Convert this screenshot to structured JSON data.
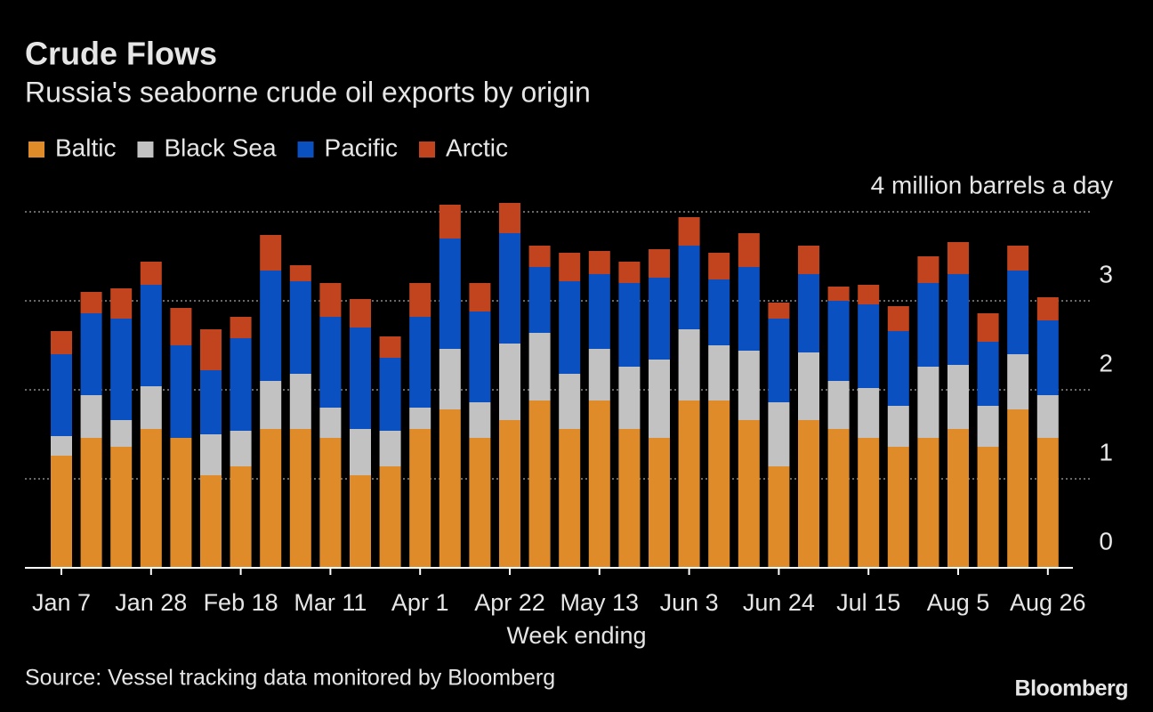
{
  "chart_data": {
    "type": "stacked_bar",
    "title": "Crude Flows",
    "subtitle": "Russia's seaborne crude oil exports by origin",
    "x_label": "Week ending",
    "source": "Source: Vessel tracking data monitored by Bloomberg",
    "credit": "Bloomberg",
    "categories": [
      "Jan 7",
      null,
      null,
      "Jan 28",
      null,
      null,
      "Feb 18",
      null,
      null,
      "Mar 11",
      null,
      null,
      "Apr 1",
      null,
      null,
      "Apr 22",
      null,
      null,
      "May 13",
      null,
      null,
      "Jun 3",
      null,
      null,
      "Jun 24",
      null,
      null,
      "Jul 15",
      null,
      null,
      "Aug 5",
      null,
      null,
      "Aug 26"
    ],
    "series": [
      {
        "name": "Baltic",
        "color": "#e08b2a",
        "values": [
          1.26,
          1.46,
          1.36,
          1.56,
          1.46,
          1.04,
          1.14,
          1.56,
          1.56,
          1.46,
          1.04,
          1.14,
          1.56,
          1.78,
          1.46,
          1.66,
          1.88,
          1.56,
          1.88,
          1.56,
          1.46,
          1.88,
          1.88,
          1.66,
          1.14,
          1.66,
          1.56,
          1.46,
          1.36,
          1.46,
          1.56,
          1.36,
          1.78,
          1.46
        ]
      },
      {
        "name": "Black Sea",
        "color": "#c2c2c2",
        "values": [
          0.22,
          0.48,
          0.3,
          0.48,
          0,
          0.46,
          0.4,
          0.54,
          0.62,
          0.34,
          0.52,
          0.4,
          0.24,
          0.68,
          0.4,
          0.86,
          0.76,
          0.62,
          0.58,
          0.7,
          0.88,
          0.8,
          0.62,
          0.78,
          0.72,
          0.76,
          0.54,
          0.56,
          0.46,
          0.8,
          0.72,
          0.46,
          0.62,
          0.48
        ]
      },
      {
        "name": "Pacific",
        "color": "#0a50c0",
        "values": [
          0.92,
          0.92,
          1.14,
          1.14,
          1.04,
          0.72,
          1.04,
          1.24,
          1.04,
          1.02,
          1.14,
          0.82,
          1.02,
          1.24,
          1.02,
          1.24,
          0.74,
          1.04,
          0.84,
          0.94,
          0.92,
          0.94,
          0.74,
          0.94,
          0.94,
          0.88,
          0.9,
          0.94,
          0.84,
          0.94,
          1.02,
          0.72,
          0.94,
          0.84
        ]
      },
      {
        "name": "Arctic",
        "color": "#c2441f",
        "values": [
          0.26,
          0.24,
          0.34,
          0.26,
          0.42,
          0.46,
          0.24,
          0.4,
          0.18,
          0.38,
          0.32,
          0.24,
          0.38,
          0.38,
          0.32,
          0.34,
          0.24,
          0.32,
          0.26,
          0.24,
          0.32,
          0.32,
          0.3,
          0.38,
          0.18,
          0.32,
          0.16,
          0.22,
          0.28,
          0.3,
          0.36,
          0.32,
          0.28,
          0.26
        ]
      }
    ],
    "ylim": [
      0,
      4
    ],
    "yticks": [
      0,
      1,
      2,
      3,
      {
        "value": 4,
        "label": "4 million barrels a day"
      }
    ],
    "grid": true,
    "legend": "top-left"
  }
}
